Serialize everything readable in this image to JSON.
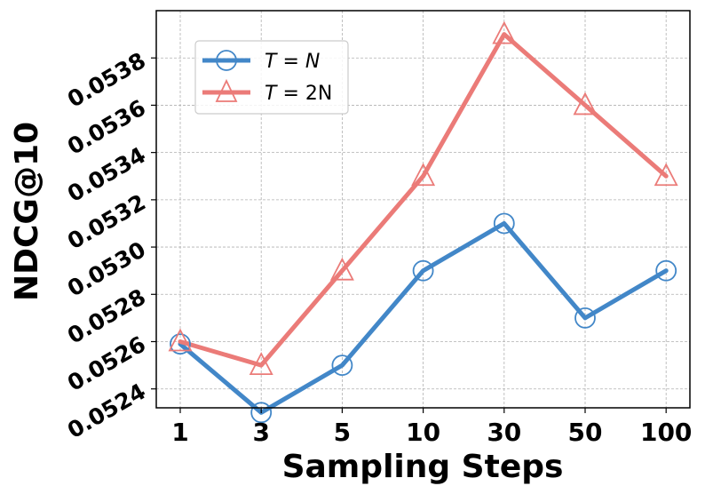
{
  "chart_data": {
    "type": "line",
    "title": "",
    "xlabel": "Sampling Steps",
    "ylabel": "NDCG@10",
    "categories": [
      "1",
      "3",
      "5",
      "10",
      "30",
      "50",
      "100"
    ],
    "ylim": [
      0.05232,
      0.054
    ],
    "yticks": [
      "0.0524",
      "0.0526",
      "0.0528",
      "0.0530",
      "0.0532",
      "0.0534",
      "0.0536",
      "0.0538"
    ],
    "ytick_values": [
      0.0524,
      0.0526,
      0.0528,
      0.053,
      0.0532,
      0.0534,
      0.0536,
      0.0538
    ],
    "grid": true,
    "legend_position": "top-left",
    "series": [
      {
        "name": "T = N",
        "legend_var": "T",
        "legend_rhs": "N",
        "color": "#4287c8",
        "marker": "circle",
        "values": [
          0.05259,
          0.0523,
          0.0525,
          0.0529,
          0.0531,
          0.0527,
          0.0529
        ]
      },
      {
        "name": "T = 2N",
        "legend_var": "T",
        "legend_rhs": "2N",
        "color": "#eb7b78",
        "marker": "triangle",
        "values": [
          0.0526,
          0.0525,
          0.0529,
          0.0533,
          0.0539,
          0.0536,
          0.0533
        ]
      }
    ]
  }
}
